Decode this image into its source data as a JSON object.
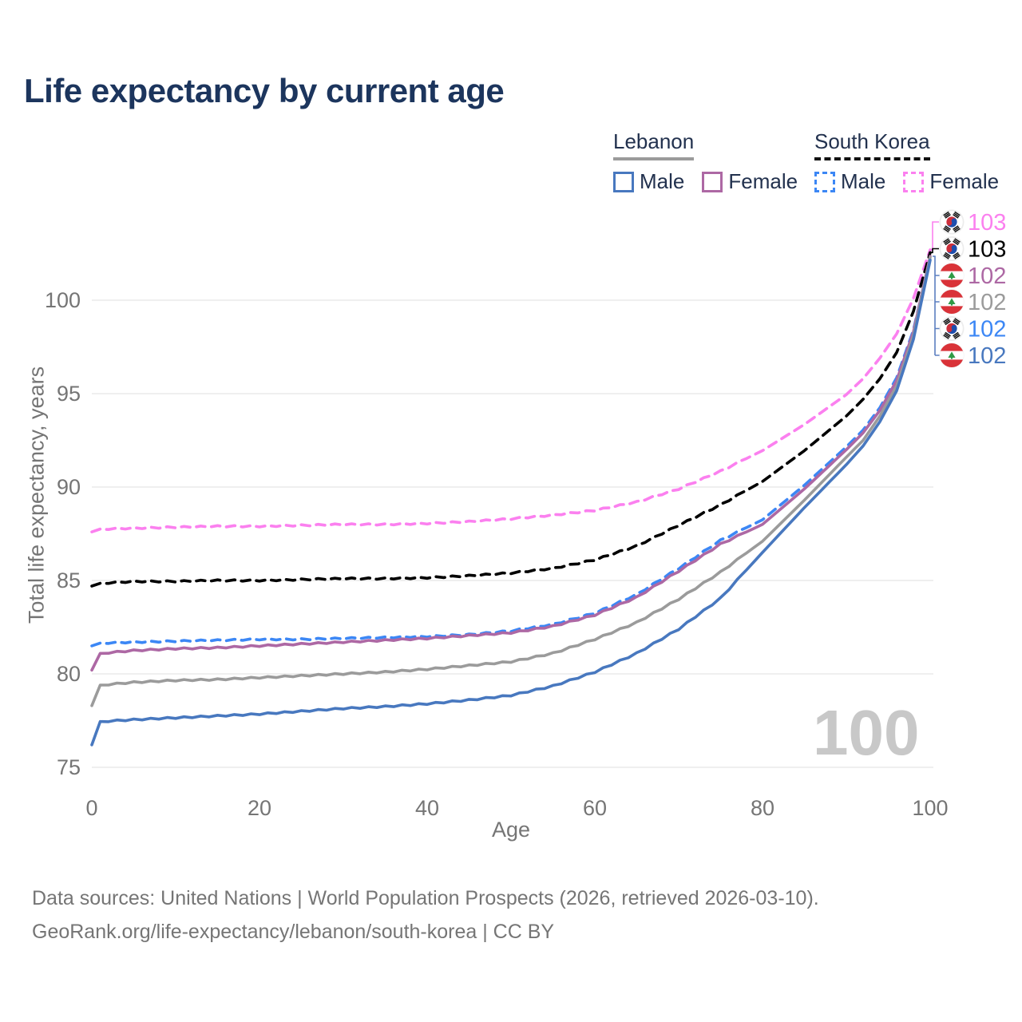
{
  "header": {
    "title": "Life expectancy by current age"
  },
  "legend": {
    "groups": [
      {
        "title": "Lebanon",
        "underline_style": "solid",
        "underline_color": "#9b9b9b",
        "items": [
          {
            "label": "Male",
            "color": "#4878bf",
            "dash": false
          },
          {
            "label": "Female",
            "color": "#ad68a4",
            "dash": false
          }
        ]
      },
      {
        "title": "South Korea",
        "underline_style": "dashed",
        "underline_color": "#111111",
        "items": [
          {
            "label": "Male",
            "color": "#3c87f5",
            "dash": true
          },
          {
            "label": "Female",
            "color": "#fb80ef",
            "dash": true
          }
        ]
      }
    ]
  },
  "chart_data": {
    "type": "line",
    "title": "Life expectancy by current age",
    "xlabel": "Age",
    "ylabel": "Total life expectancy, years",
    "xlim": [
      0,
      100
    ],
    "ylim": [
      75,
      103.5
    ],
    "xticks": [
      0,
      20,
      40,
      60,
      80,
      100
    ],
    "yticks": [
      75,
      80,
      85,
      90,
      95,
      100
    ],
    "grid": true,
    "legend_position": "top-right",
    "watermark": "100",
    "x": [
      0,
      1,
      5,
      10,
      15,
      20,
      25,
      30,
      35,
      40,
      45,
      50,
      55,
      60,
      65,
      70,
      75,
      80,
      85,
      90,
      92,
      94,
      96,
      98,
      100
    ],
    "series": [
      {
        "name": "South Korea Female",
        "country": "South Korea",
        "sex": "Female",
        "flag": "kr",
        "color": "#fb80ef",
        "dash": true,
        "end_label": "103",
        "values": [
          87.6,
          87.75,
          87.8,
          87.85,
          87.9,
          87.9,
          87.95,
          88.0,
          88.0,
          88.05,
          88.15,
          88.3,
          88.5,
          88.75,
          89.2,
          89.9,
          90.85,
          91.95,
          93.35,
          94.95,
          95.8,
          96.9,
          98.2,
          100.1,
          102.7
        ]
      },
      {
        "name": "South Korea Total",
        "country": "South Korea",
        "sex": "Total",
        "flag": "kr",
        "color": "#000000",
        "dash": true,
        "end_label": "103",
        "values": [
          84.7,
          84.85,
          84.95,
          84.95,
          85.0,
          85.0,
          85.05,
          85.1,
          85.1,
          85.15,
          85.25,
          85.4,
          85.65,
          86.1,
          86.85,
          87.95,
          89.05,
          90.3,
          91.95,
          93.8,
          94.7,
          95.8,
          97.2,
          99.4,
          102.55
        ]
      },
      {
        "name": "South Korea Male",
        "country": "South Korea",
        "sex": "Male",
        "flag": "kr",
        "color": "#3c87f5",
        "dash": true,
        "end_label": "102",
        "values": [
          81.5,
          81.65,
          81.7,
          81.75,
          81.8,
          81.85,
          81.85,
          81.9,
          81.95,
          82.0,
          82.1,
          82.3,
          82.65,
          83.25,
          84.25,
          85.65,
          87.15,
          88.25,
          90.1,
          92.15,
          93.05,
          94.25,
          95.85,
          98.4,
          102.25
        ]
      },
      {
        "name": "Lebanon Female",
        "country": "Lebanon",
        "sex": "Female",
        "flag": "lb",
        "color": "#ad68a4",
        "dash": false,
        "end_label": "102",
        "values": [
          80.2,
          81.1,
          81.25,
          81.35,
          81.4,
          81.5,
          81.6,
          81.7,
          81.8,
          81.9,
          82.05,
          82.2,
          82.55,
          83.15,
          84.1,
          85.5,
          86.95,
          88.0,
          89.9,
          92.0,
          92.9,
          94.1,
          95.7,
          98.3,
          102.35
        ]
      },
      {
        "name": "Lebanon Total",
        "country": "Lebanon",
        "sex": "Total",
        "flag": "lb",
        "color": "#9b9b9b",
        "dash": false,
        "end_label": "102",
        "values": [
          78.3,
          79.4,
          79.55,
          79.65,
          79.7,
          79.8,
          79.9,
          80.0,
          80.1,
          80.25,
          80.45,
          80.65,
          81.1,
          81.85,
          82.75,
          84.0,
          85.45,
          87.1,
          89.3,
          91.6,
          92.5,
          93.8,
          95.4,
          98.1,
          102.3
        ]
      },
      {
        "name": "Lebanon Male",
        "country": "Lebanon",
        "sex": "Male",
        "flag": "lb",
        "color": "#4878bf",
        "dash": false,
        "end_label": "102",
        "values": [
          76.2,
          77.45,
          77.55,
          77.65,
          77.75,
          77.85,
          78.0,
          78.15,
          78.25,
          78.4,
          78.6,
          78.85,
          79.35,
          80.1,
          81.1,
          82.4,
          84.05,
          86.5,
          88.9,
          91.2,
          92.2,
          93.5,
          95.15,
          97.9,
          102.15
        ]
      }
    ],
    "end_labels": [
      {
        "flag": "kr",
        "label": "103",
        "color": "#fb80ef",
        "series": "South Korea Female"
      },
      {
        "flag": "kr",
        "label": "103",
        "color": "#000000",
        "series": "South Korea Total"
      },
      {
        "flag": "lb",
        "label": "102",
        "color": "#ad68a4",
        "series": "Lebanon Female"
      },
      {
        "flag": "lb",
        "label": "102",
        "color": "#9b9b9b",
        "series": "Lebanon Total"
      },
      {
        "flag": "kr",
        "label": "102",
        "color": "#3c87f5",
        "series": "South Korea Male"
      },
      {
        "flag": "lb",
        "label": "102",
        "color": "#4878bf",
        "series": "Lebanon Male"
      }
    ]
  },
  "footer": {
    "line1": "Data sources: United Nations | World Population Prospects (2026, retrieved 2026-03-10).",
    "line2": "GeoRank.org/life-expectancy/lebanon/south-korea | CC BY"
  }
}
